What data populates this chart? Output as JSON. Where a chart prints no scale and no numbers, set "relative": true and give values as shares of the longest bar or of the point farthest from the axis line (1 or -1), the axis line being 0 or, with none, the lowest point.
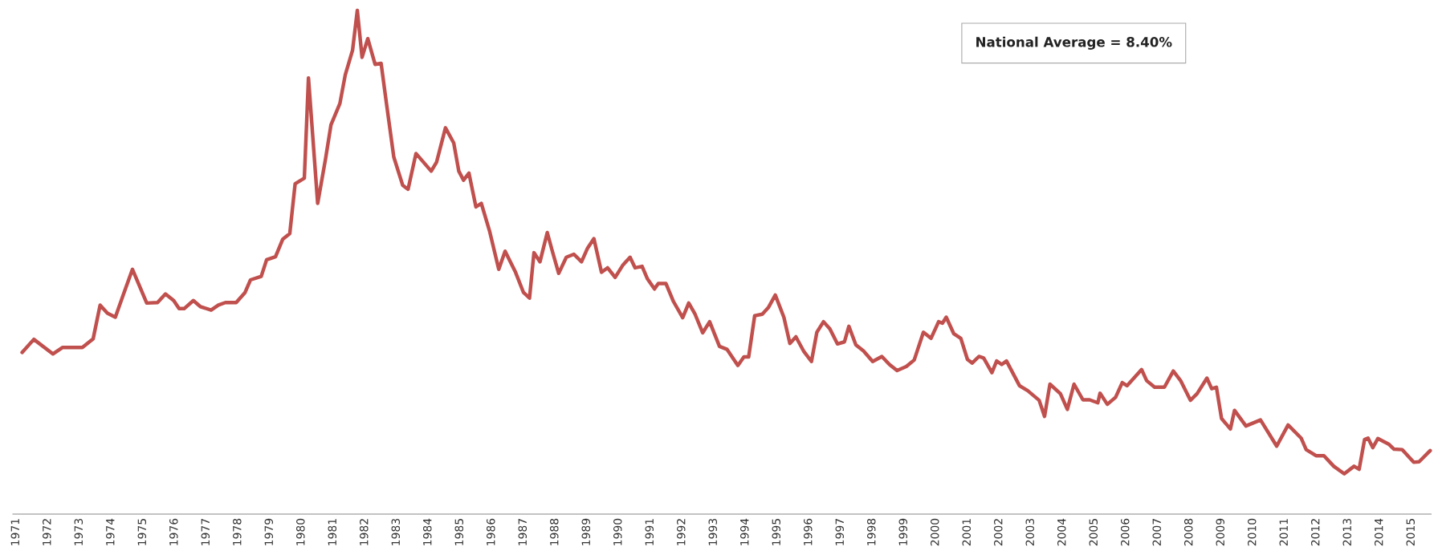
{
  "chart_data": {
    "type": "line",
    "relative": true,
    "tick_labels": "x",
    "grid": false,
    "marker": "none",
    "line_style": "solid",
    "annotations": [
      "National Average = 8.40%"
    ],
    "xlim": [
      1970.9,
      2015.62
    ],
    "xticks": [
      1971,
      1972,
      1973,
      1974,
      1975,
      1976,
      1977,
      1978,
      1979,
      1980,
      1981,
      1982,
      1983,
      1984,
      1985,
      1986,
      1987,
      1988,
      1989,
      1990,
      1991,
      1992,
      1993,
      1994,
      1995,
      1996,
      1997,
      1998,
      1999,
      2000,
      2001,
      2002,
      2003,
      2004,
      2005,
      2006,
      2007,
      2008,
      2009,
      2010,
      2011,
      2012,
      2013,
      2014,
      2015
    ],
    "series": [
      {
        "color": "#c0504d",
        "x": [
          1971.19,
          1971.56,
          1972.16,
          1972.47,
          1973.09,
          1973.43,
          1973.65,
          1973.88,
          1974.13,
          1974.39,
          1974.67,
          1975.12,
          1975.46,
          1975.71,
          1975.97,
          1976.14,
          1976.3,
          1976.59,
          1976.81,
          1977.15,
          1977.38,
          1977.6,
          1977.94,
          1978.22,
          1978.39,
          1978.73,
          1978.9,
          1979.18,
          1979.41,
          1979.63,
          1979.8,
          1980.09,
          1980.22,
          1980.51,
          1980.76,
          1980.93,
          1981.21,
          1981.38,
          1981.61,
          1981.76,
          1981.91,
          1982.09,
          1982.32,
          1982.51,
          1982.68,
          1982.91,
          1983.19,
          1983.36,
          1983.61,
          1984.09,
          1984.26,
          1984.54,
          1984.8,
          1984.96,
          1985.11,
          1985.28,
          1985.5,
          1985.67,
          1985.93,
          1986.22,
          1986.42,
          1986.75,
          1987.0,
          1987.19,
          1987.33,
          1987.52,
          1987.75,
          1987.91,
          1988.11,
          1988.35,
          1988.59,
          1988.83,
          1989.02,
          1989.22,
          1989.46,
          1989.65,
          1989.89,
          1990.14,
          1990.36,
          1990.52,
          1990.74,
          1990.91,
          1991.13,
          1991.25,
          1991.49,
          1991.73,
          1992.02,
          1992.21,
          1992.41,
          1992.65,
          1992.87,
          1993.18,
          1993.42,
          1993.76,
          1993.95,
          1994.1,
          1994.29,
          1994.53,
          1994.72,
          1994.94,
          1995.21,
          1995.4,
          1995.59,
          1995.83,
          1996.08,
          1996.25,
          1996.46,
          1996.66,
          1996.9,
          1997.12,
          1997.26,
          1997.48,
          1997.72,
          1998.01,
          1998.3,
          1998.54,
          1998.78,
          1999.07,
          1999.32,
          1999.61,
          1999.85,
          2000.09,
          2000.21,
          2000.33,
          2000.57,
          2000.79,
          2001.0,
          2001.15,
          2001.36,
          2001.51,
          2001.77,
          2001.92,
          2002.08,
          2002.23,
          2002.64,
          2002.9,
          2003.26,
          2003.43,
          2003.6,
          2003.93,
          2004.15,
          2004.36,
          2004.64,
          2004.85,
          2005.11,
          2005.18,
          2005.41,
          2005.67,
          2005.88,
          2006.03,
          2006.49,
          2006.65,
          2006.9,
          2007.21,
          2007.49,
          2007.72,
          2008.03,
          2008.24,
          2008.55,
          2008.7,
          2008.85,
          2009.01,
          2009.29,
          2009.42,
          2009.78,
          2010.24,
          2010.75,
          2011.11,
          2011.52,
          2011.68,
          2011.99,
          2012.24,
          2012.55,
          2012.88,
          2013.19,
          2013.35,
          2013.52,
          2013.63,
          2013.78,
          2013.94,
          2014.28,
          2014.45,
          2014.71,
          2015.07,
          2015.24,
          2015.59
        ],
        "values": [
          0.321,
          0.347,
          0.318,
          0.331,
          0.331,
          0.348,
          0.415,
          0.399,
          0.391,
          0.437,
          0.486,
          0.419,
          0.42,
          0.437,
          0.424,
          0.408,
          0.408,
          0.424,
          0.412,
          0.405,
          0.415,
          0.42,
          0.42,
          0.44,
          0.465,
          0.472,
          0.505,
          0.511,
          0.546,
          0.557,
          0.656,
          0.667,
          0.866,
          0.617,
          0.706,
          0.773,
          0.815,
          0.872,
          0.921,
          1,
          0.907,
          0.944,
          0.893,
          0.895,
          0.815,
          0.709,
          0.653,
          0.645,
          0.716,
          0.681,
          0.699,
          0.767,
          0.737,
          0.681,
          0.663,
          0.677,
          0.61,
          0.617,
          0.562,
          0.486,
          0.522,
          0.48,
          0.44,
          0.429,
          0.519,
          0.501,
          0.559,
          0.522,
          0.478,
          0.51,
          0.516,
          0.501,
          0.528,
          0.547,
          0.48,
          0.489,
          0.47,
          0.495,
          0.51,
          0.489,
          0.492,
          0.467,
          0.447,
          0.458,
          0.458,
          0.422,
          0.39,
          0.419,
          0.397,
          0.36,
          0.382,
          0.333,
          0.327,
          0.295,
          0.312,
          0.312,
          0.394,
          0.397,
          0.41,
          0.435,
          0.391,
          0.339,
          0.352,
          0.324,
          0.303,
          0.361,
          0.382,
          0.368,
          0.338,
          0.342,
          0.373,
          0.336,
          0.324,
          0.303,
          0.313,
          0.297,
          0.285,
          0.293,
          0.306,
          0.361,
          0.349,
          0.382,
          0.379,
          0.391,
          0.358,
          0.349,
          0.307,
          0.3,
          0.313,
          0.31,
          0.281,
          0.304,
          0.297,
          0.304,
          0.255,
          0.245,
          0.226,
          0.194,
          0.258,
          0.239,
          0.208,
          0.258,
          0.227,
          0.227,
          0.221,
          0.24,
          0.218,
          0.232,
          0.261,
          0.255,
          0.287,
          0.265,
          0.252,
          0.252,
          0.284,
          0.265,
          0.226,
          0.239,
          0.27,
          0.249,
          0.252,
          0.19,
          0.169,
          0.206,
          0.175,
          0.187,
          0.135,
          0.177,
          0.151,
          0.128,
          0.116,
          0.116,
          0.095,
          0.08,
          0.095,
          0.089,
          0.148,
          0.151,
          0.132,
          0.15,
          0.139,
          0.129,
          0.128,
          0.103,
          0.104,
          0.126
        ]
      }
    ]
  }
}
